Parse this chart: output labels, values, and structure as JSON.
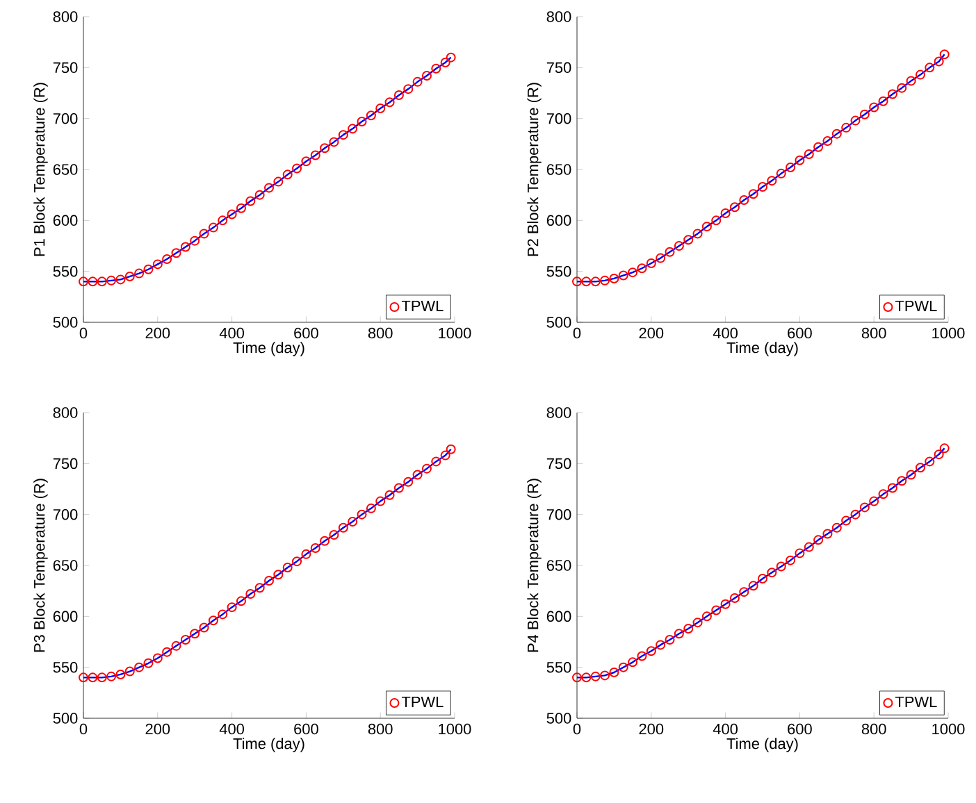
{
  "chart_data": [
    {
      "type": "line",
      "xlabel": "Time (day)",
      "ylabel": "P1 Block Temperature (R)",
      "xlim": [
        0,
        1000
      ],
      "ylim": [
        500,
        800
      ],
      "xticks": [
        0,
        200,
        400,
        600,
        800,
        1000
      ],
      "yticks": [
        500,
        550,
        600,
        650,
        700,
        750,
        800
      ],
      "grid": false,
      "legend": "bottom right",
      "x": [
        0,
        25,
        50,
        75,
        100,
        125,
        150,
        175,
        200,
        225,
        250,
        275,
        300,
        325,
        350,
        375,
        400,
        425,
        450,
        475,
        500,
        525,
        550,
        575,
        600,
        625,
        650,
        675,
        700,
        725,
        750,
        775,
        800,
        825,
        850,
        875,
        900,
        925,
        950,
        975,
        990
      ],
      "series": [
        {
          "name": "TPWL",
          "type": "scatter",
          "marker": "circle",
          "color": "#ff0000",
          "values": [
            540,
            540,
            540,
            541,
            542,
            545,
            548,
            552,
            557,
            562,
            568,
            574,
            580,
            587,
            593,
            600,
            606,
            612,
            619,
            625,
            632,
            638,
            645,
            651,
            658,
            664,
            671,
            677,
            684,
            690,
            697,
            703,
            710,
            716,
            723,
            729,
            736,
            742,
            749,
            755,
            760
          ]
        },
        {
          "color": "#0000ff",
          "values": [
            540,
            540,
            540,
            541,
            542,
            545,
            548,
            552,
            557,
            562,
            568,
            574,
            580,
            587,
            593,
            600,
            606,
            612,
            619,
            625,
            632,
            638,
            645,
            651,
            658,
            664,
            671,
            677,
            684,
            690,
            697,
            703,
            710,
            716,
            723,
            729,
            736,
            742,
            749,
            755,
            760
          ]
        }
      ]
    },
    {
      "type": "line",
      "xlabel": "Time (day)",
      "ylabel": "P2 Block Temperature (R)",
      "xlim": [
        0,
        1000
      ],
      "ylim": [
        500,
        800
      ],
      "xticks": [
        0,
        200,
        400,
        600,
        800,
        1000
      ],
      "yticks": [
        500,
        550,
        600,
        650,
        700,
        750,
        800
      ],
      "grid": false,
      "legend": "bottom right",
      "x": [
        0,
        25,
        50,
        75,
        100,
        125,
        150,
        175,
        200,
        225,
        250,
        275,
        300,
        325,
        350,
        375,
        400,
        425,
        450,
        475,
        500,
        525,
        550,
        575,
        600,
        625,
        650,
        675,
        700,
        725,
        750,
        775,
        800,
        825,
        850,
        875,
        900,
        925,
        950,
        975,
        990
      ],
      "series": [
        {
          "name": "TPWL",
          "type": "scatter",
          "marker": "circle",
          "color": "#ff0000",
          "values": [
            540,
            540,
            540,
            541,
            543,
            546,
            549,
            553,
            558,
            563,
            569,
            575,
            581,
            587,
            594,
            600,
            607,
            613,
            620,
            626,
            633,
            639,
            646,
            652,
            659,
            665,
            672,
            678,
            685,
            691,
            698,
            704,
            711,
            717,
            724,
            730,
            737,
            743,
            750,
            756,
            763
          ]
        },
        {
          "color": "#0000ff",
          "values": [
            540,
            540,
            540,
            541,
            543,
            546,
            549,
            553,
            558,
            563,
            569,
            575,
            581,
            587,
            594,
            600,
            607,
            613,
            620,
            626,
            633,
            639,
            646,
            652,
            659,
            665,
            672,
            678,
            685,
            691,
            698,
            704,
            711,
            717,
            724,
            730,
            737,
            743,
            750,
            756,
            763
          ]
        }
      ]
    },
    {
      "type": "line",
      "xlabel": "Time (day)",
      "ylabel": "P3 Block Temperature (R)",
      "xlim": [
        0,
        1000
      ],
      "ylim": [
        500,
        800
      ],
      "xticks": [
        0,
        200,
        400,
        600,
        800,
        1000
      ],
      "yticks": [
        500,
        550,
        600,
        650,
        700,
        750,
        800
      ],
      "grid": false,
      "legend": "bottom right",
      "x": [
        0,
        25,
        50,
        75,
        100,
        125,
        150,
        175,
        200,
        225,
        250,
        275,
        300,
        325,
        350,
        375,
        400,
        425,
        450,
        475,
        500,
        525,
        550,
        575,
        600,
        625,
        650,
        675,
        700,
        725,
        750,
        775,
        800,
        825,
        850,
        875,
        900,
        925,
        950,
        975,
        990
      ],
      "series": [
        {
          "name": "TPWL",
          "type": "scatter",
          "marker": "circle",
          "color": "#ff0000",
          "values": [
            540,
            540,
            540,
            541,
            543,
            546,
            550,
            554,
            559,
            565,
            571,
            577,
            583,
            589,
            596,
            602,
            609,
            615,
            622,
            628,
            635,
            641,
            648,
            654,
            661,
            667,
            674,
            680,
            687,
            693,
            700,
            706,
            713,
            719,
            726,
            732,
            739,
            745,
            752,
            758,
            764
          ]
        },
        {
          "color": "#0000ff",
          "values": [
            540,
            540,
            540,
            541,
            543,
            546,
            550,
            554,
            559,
            565,
            571,
            577,
            583,
            589,
            596,
            602,
            609,
            615,
            622,
            628,
            635,
            641,
            648,
            654,
            661,
            667,
            674,
            680,
            687,
            693,
            700,
            706,
            713,
            719,
            726,
            732,
            739,
            745,
            752,
            758,
            764
          ]
        }
      ]
    },
    {
      "type": "line",
      "xlabel": "Time (day)",
      "ylabel": "P4 Block Temperature (R)",
      "xlim": [
        0,
        1000
      ],
      "ylim": [
        500,
        800
      ],
      "xticks": [
        0,
        200,
        400,
        600,
        800,
        1000
      ],
      "yticks": [
        500,
        550,
        600,
        650,
        700,
        750,
        800
      ],
      "grid": false,
      "legend": "bottom right",
      "x": [
        0,
        25,
        50,
        75,
        100,
        125,
        150,
        175,
        200,
        225,
        250,
        275,
        300,
        325,
        350,
        375,
        400,
        425,
        450,
        475,
        500,
        525,
        550,
        575,
        600,
        625,
        650,
        675,
        700,
        725,
        750,
        775,
        800,
        825,
        850,
        875,
        900,
        925,
        950,
        975,
        990
      ],
      "series": [
        {
          "name": "TPWL",
          "type": "scatter",
          "marker": "circle",
          "color": "#ff0000",
          "values": [
            540,
            540,
            541,
            542,
            545,
            550,
            555,
            561,
            566,
            572,
            577,
            583,
            588,
            594,
            600,
            606,
            612,
            618,
            624,
            630,
            637,
            643,
            649,
            655,
            662,
            668,
            675,
            681,
            687,
            694,
            700,
            707,
            713,
            720,
            726,
            733,
            739,
            746,
            752,
            759,
            765
          ]
        },
        {
          "color": "#0000ff",
          "values": [
            540,
            540,
            541,
            542,
            545,
            550,
            555,
            561,
            566,
            572,
            577,
            583,
            588,
            594,
            600,
            606,
            612,
            618,
            624,
            630,
            637,
            643,
            649,
            655,
            662,
            668,
            675,
            681,
            687,
            694,
            700,
            707,
            713,
            720,
            726,
            733,
            739,
            746,
            752,
            759,
            765
          ]
        }
      ]
    }
  ]
}
